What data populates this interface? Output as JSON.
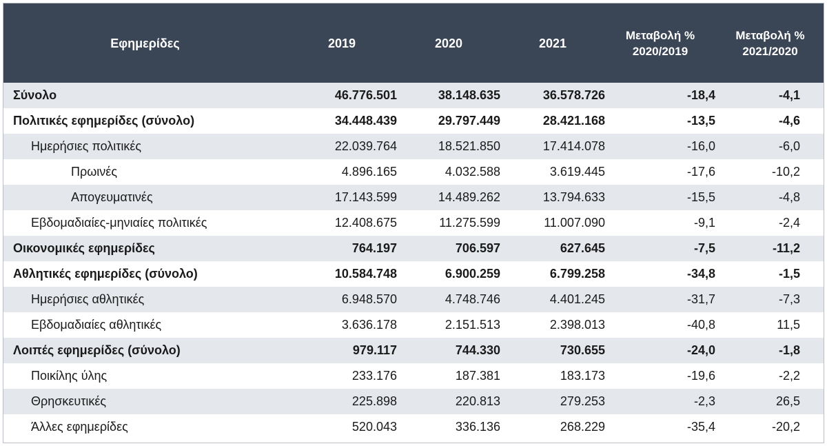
{
  "header": {
    "col0": "Εφημερίδες",
    "col1": "2019",
    "col2": "2020",
    "col3": "2021",
    "col4_line1": "Μεταβολή %",
    "col4_line2": "2020/2019",
    "col5_line1": "Μεταβολή %",
    "col5_line2": "2021/2020"
  },
  "rows": [
    {
      "label": "Σύνολο",
      "v2019": "46.776.501",
      "v2020": "38.148.635",
      "v2021": "36.578.726",
      "ch1": "-18,4",
      "ch2": "-4,1",
      "level": 0,
      "bold": true,
      "shade": true
    },
    {
      "label": "Πολιτικές εφημερίδες (σύνολο)",
      "v2019": "34.448.439",
      "v2020": "29.797.449",
      "v2021": "28.421.168",
      "ch1": "-13,5",
      "ch2": "-4,6",
      "level": 0,
      "bold": true,
      "shade": false
    },
    {
      "label": "Ημερήσιες πολιτικές",
      "v2019": "22.039.764",
      "v2020": "18.521.850",
      "v2021": "17.414.078",
      "ch1": "-16,0",
      "ch2": "-6,0",
      "level": 1,
      "bold": false,
      "shade": true
    },
    {
      "label": "Πρωινές",
      "v2019": "4.896.165",
      "v2020": "4.032.588",
      "v2021": "3.619.445",
      "ch1": "-17,6",
      "ch2": "-10,2",
      "level": 2,
      "bold": false,
      "shade": false
    },
    {
      "label": "Απογευματινές",
      "v2019": "17.143.599",
      "v2020": "14.489.262",
      "v2021": "13.794.633",
      "ch1": "-15,5",
      "ch2": "-4,8",
      "level": 2,
      "bold": false,
      "shade": true
    },
    {
      "label": "Εβδομαδιαίες-μηνιαίες πολιτικές",
      "v2019": "12.408.675",
      "v2020": "11.275.599",
      "v2021": "11.007.090",
      "ch1": "-9,1",
      "ch2": "-2,4",
      "level": 1,
      "bold": false,
      "shade": false
    },
    {
      "label": "Οικονομικές εφημερίδες",
      "v2019": "764.197",
      "v2020": "706.597",
      "v2021": "627.645",
      "ch1": "-7,5",
      "ch2": "-11,2",
      "level": 0,
      "bold": true,
      "shade": true
    },
    {
      "label": "Αθλητικές εφημερίδες (σύνολο)",
      "v2019": "10.584.748",
      "v2020": "6.900.259",
      "v2021": "6.799.258",
      "ch1": "-34,8",
      "ch2": "-1,5",
      "level": 0,
      "bold": true,
      "shade": false
    },
    {
      "label": "Ημερήσιες αθλητικές",
      "v2019": "6.948.570",
      "v2020": "4.748.746",
      "v2021": "4.401.245",
      "ch1": "-31,7",
      "ch2": "-7,3",
      "level": 1,
      "bold": false,
      "shade": true
    },
    {
      "label": "Εβδομαδιαίες αθλητικές",
      "v2019": "3.636.178",
      "v2020": "2.151.513",
      "v2021": "2.398.013",
      "ch1": "-40,8",
      "ch2": "11,5",
      "level": 1,
      "bold": false,
      "shade": false
    },
    {
      "label": "Λοιπές εφημερίδες (σύνολο)",
      "v2019": "979.117",
      "v2020": "744.330",
      "v2021": "730.655",
      "ch1": "-24,0",
      "ch2": "-1,8",
      "level": 0,
      "bold": true,
      "shade": true
    },
    {
      "label": "Ποικίλης ύλης",
      "v2019": "233.176",
      "v2020": "187.381",
      "v2021": "183.173",
      "ch1": "-19,6",
      "ch2": "-2,2",
      "level": 1,
      "bold": false,
      "shade": false
    },
    {
      "label": "Θρησκευτικές",
      "v2019": "225.898",
      "v2020": "220.813",
      "v2021": "279.253",
      "ch1": "-2,3",
      "ch2": "26,5",
      "level": 1,
      "bold": false,
      "shade": true
    },
    {
      "label": "Άλλες εφημερίδες",
      "v2019": "520.043",
      "v2020": "336.136",
      "v2021": "268.229",
      "ch1": "-35,4",
      "ch2": "-20,2",
      "level": 1,
      "bold": false,
      "shade": false
    }
  ],
  "colors": {
    "header_bg": "#3a4556",
    "header_text": "#ffffff",
    "stripe": "#e4e7ec"
  }
}
